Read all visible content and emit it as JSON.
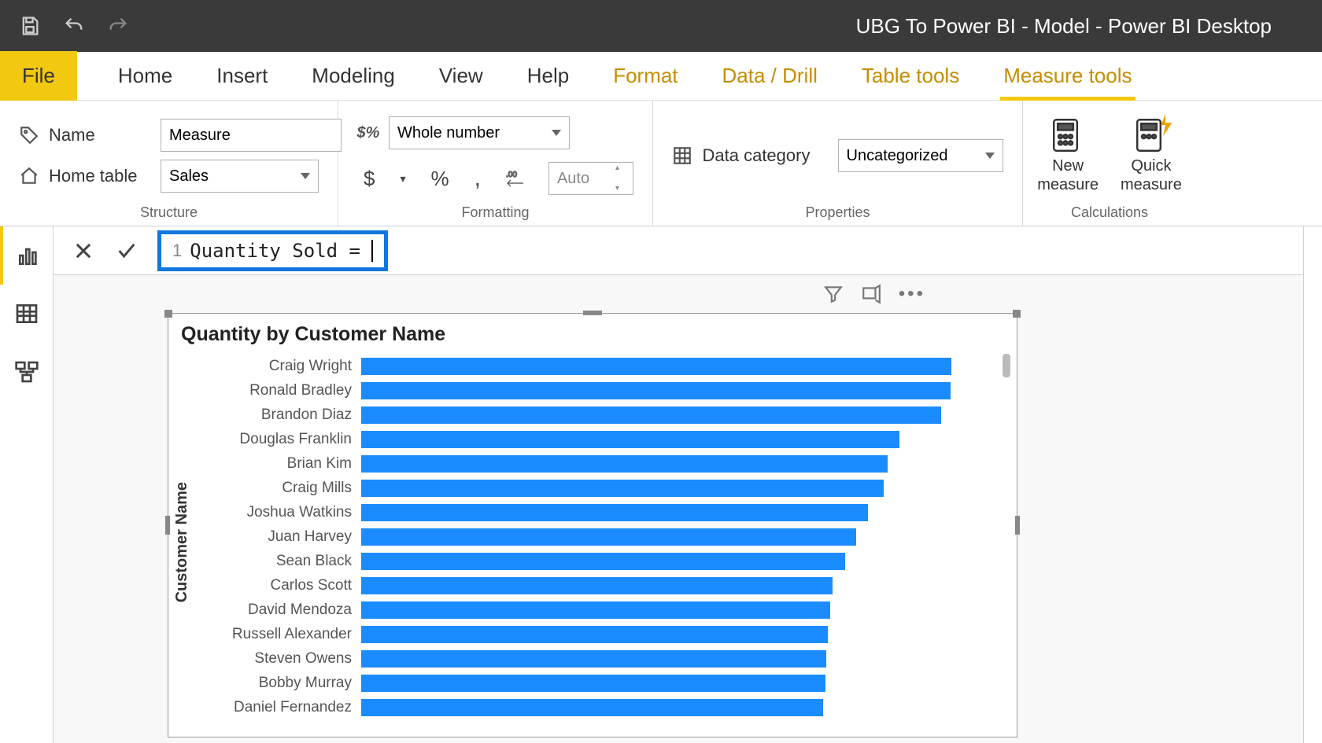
{
  "app": {
    "title": "UBG To Power BI - Model - Power BI Desktop"
  },
  "ribbon_tabs": {
    "file": "File",
    "items": [
      "Home",
      "Insert",
      "Modeling",
      "View",
      "Help",
      "Format",
      "Data / Drill",
      "Table tools",
      "Measure tools"
    ],
    "context_start_index": 5,
    "active_index": 8
  },
  "ribbon": {
    "structure": {
      "label": "Structure",
      "name_label": "Name",
      "name_value": "Measure",
      "home_table_label": "Home table",
      "home_table_value": "Sales"
    },
    "formatting": {
      "label": "Formatting",
      "format_value": "Whole number",
      "auto_placeholder": "Auto",
      "currency_symbol": "$",
      "percent_symbol": "%",
      "comma_symbol": ",",
      "decimals_symbol": ".00→.0"
    },
    "properties": {
      "label": "Properties",
      "data_category_label": "Data category",
      "data_category_value": "Uncategorized"
    },
    "calculations": {
      "label": "Calculations",
      "new_measure": "New\nmeasure",
      "quick_measure": "Quick\nmeasure"
    }
  },
  "formula": {
    "line_number": "1",
    "code": "Quantity Sold ="
  },
  "visual": {
    "title": "Quantity by Customer Name",
    "y_axis_label": "Customer Name",
    "chart_type": "bar",
    "bar_color": "#1a8cff",
    "max_value": 1000,
    "background_color": "#ffffff",
    "title_fontsize": 25,
    "label_fontsize": 19,
    "bars": [
      {
        "label": "Craig Wright",
        "value": 1000
      },
      {
        "label": "Ronald Bradley",
        "value": 998
      },
      {
        "label": "Brandon Diaz",
        "value": 982
      },
      {
        "label": "Douglas Franklin",
        "value": 912
      },
      {
        "label": "Brian Kim",
        "value": 892
      },
      {
        "label": "Craig Mills",
        "value": 885
      },
      {
        "label": "Joshua Watkins",
        "value": 858
      },
      {
        "label": "Juan Harvey",
        "value": 838
      },
      {
        "label": "Sean Black",
        "value": 820
      },
      {
        "label": "Carlos Scott",
        "value": 798
      },
      {
        "label": "David Mendoza",
        "value": 795
      },
      {
        "label": "Russell Alexander",
        "value": 790
      },
      {
        "label": "Steven Owens",
        "value": 788
      },
      {
        "label": "Bobby Murray",
        "value": 786
      },
      {
        "label": "Daniel Fernandez",
        "value": 783
      }
    ]
  },
  "colors": {
    "accent": "#f2c811",
    "highlight_box": "#1177dd",
    "bar": "#1a8cff",
    "titlebar_bg": "#3a3a3a"
  }
}
